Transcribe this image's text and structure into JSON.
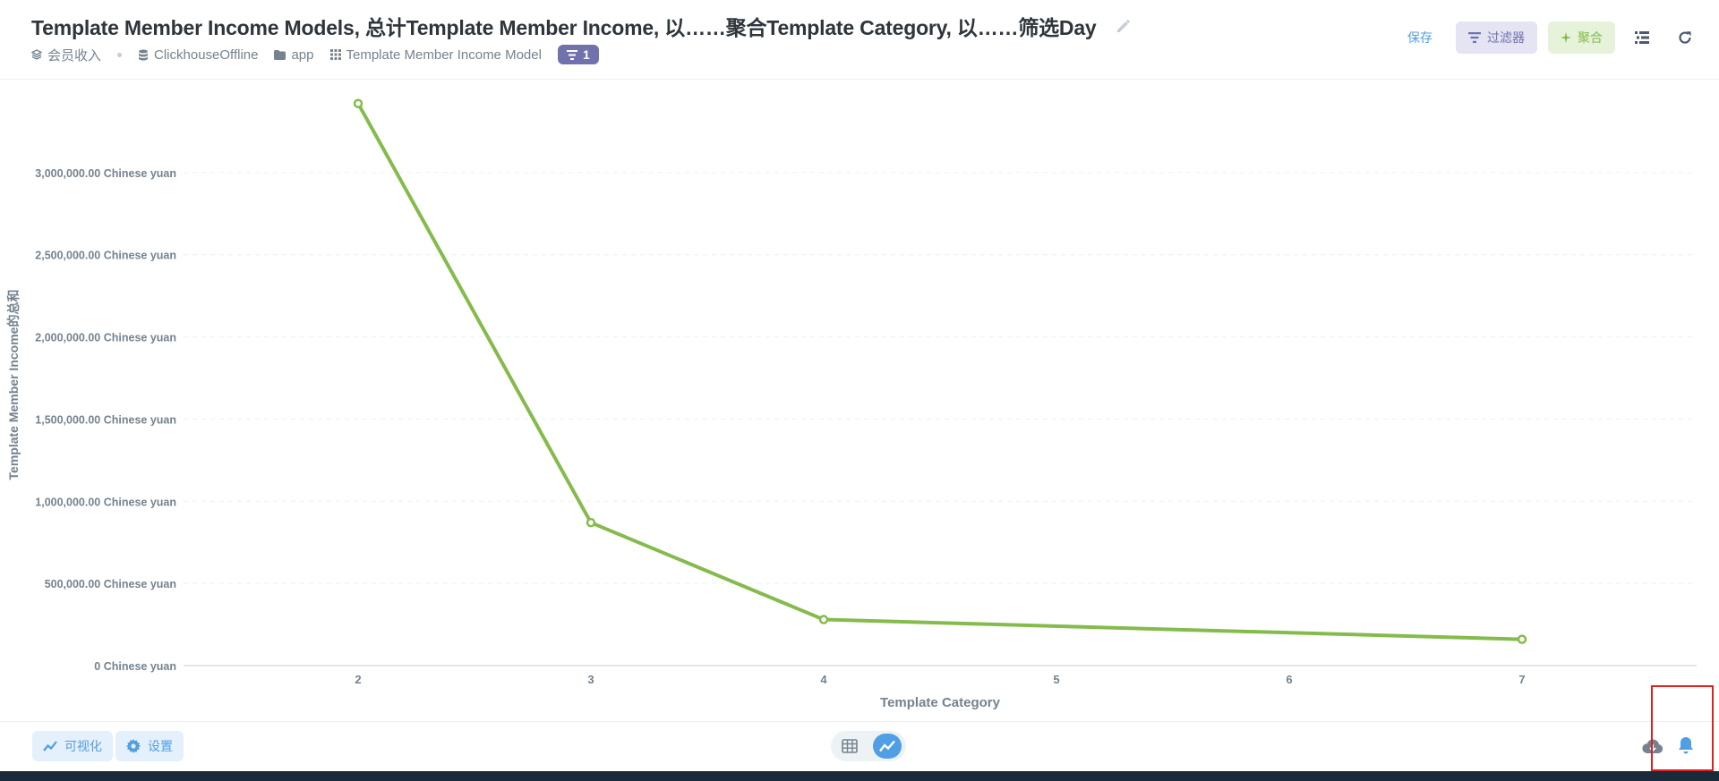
{
  "header": {
    "title": "Template Member Income Models, 总计Template Member Income, 以……聚合Template Category, 以……筛选Day",
    "breadcrumbs": [
      "会员收入",
      "ClickhouseOffline",
      "app",
      "Template Member Income Model"
    ],
    "filter_count": "1"
  },
  "actions": {
    "save": "保存",
    "filter": "过滤器",
    "summarize": "聚合"
  },
  "footer": {
    "visualization": "可视化",
    "settings": "设置"
  },
  "colors": {
    "line": "#84bb4c",
    "accent": "#509ee3",
    "filter": "#7172ad"
  },
  "chart_data": {
    "type": "line",
    "x": [
      "2",
      "3",
      "4",
      "5",
      "6",
      "7"
    ],
    "points": [
      {
        "x": 2,
        "y": 3420000
      },
      {
        "x": 3,
        "y": 870000
      },
      {
        "x": 4,
        "y": 280000
      },
      {
        "x": 7,
        "y": 160000
      }
    ],
    "yticks": [
      "0 Chinese yuan",
      "500,000.00 Chinese yuan",
      "1,000,000.00 Chinese yuan",
      "1,500,000.00 Chinese yuan",
      "2,000,000.00 Chinese yuan",
      "2,500,000.00 Chinese yuan",
      "3,000,000.00 Chinese yuan"
    ],
    "ytick_values": [
      0,
      500000,
      1000000,
      1500000,
      2000000,
      2500000,
      3000000
    ],
    "xlabel": "Template Category",
    "ylabel": "Template Member Income的总和",
    "ylim": [
      0,
      3500000
    ],
    "xlim": [
      1.25,
      7.75
    ],
    "grid": true
  }
}
